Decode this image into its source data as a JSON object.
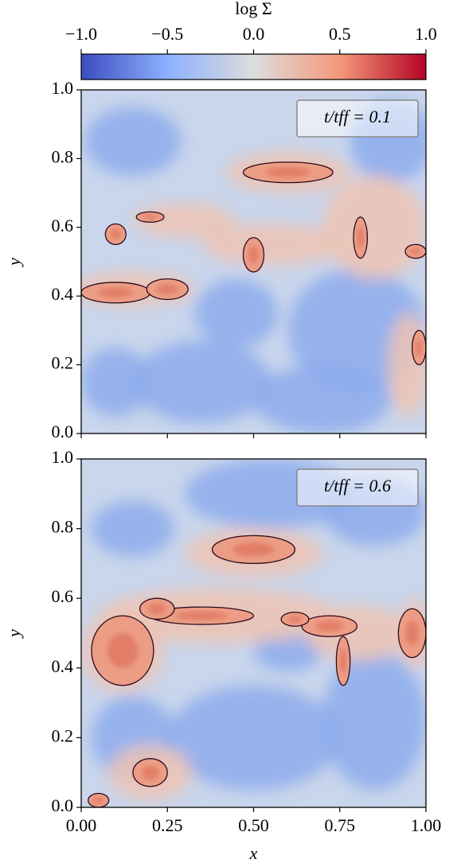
{
  "chart_data": [
    {
      "type": "heatmap",
      "annotation": "t/tff = 0.1",
      "ylabel": "y",
      "xlim": [
        0,
        1
      ],
      "ylim": [
        0,
        1
      ],
      "yticks": [
        {
          "value": 0,
          "label": "0.0"
        },
        0.2,
        0.4,
        0.6,
        0.8,
        {
          "value": 1,
          "label": "1.0"
        }
      ],
      "colorbar": {
        "label": "log Σ",
        "lim": [
          -1,
          1
        ],
        "ticks": [
          {
            "value": -1,
            "label": "−1.0"
          },
          {
            "value": -0.5,
            "label": "−0.5"
          },
          {
            "value": 0,
            "label": "0.0"
          },
          0.5,
          {
            "value": 1,
            "label": "1.0"
          }
        ],
        "colors": [
          "#3b4cc0",
          "#8db0fe",
          "#dddddd",
          "#f4987a",
          "#b40426"
        ]
      }
    },
    {
      "type": "heatmap",
      "annotation": "t/tff = 0.6",
      "ylabel": "y",
      "xlabel": "x",
      "xlim": [
        0,
        1
      ],
      "ylim": [
        0,
        1
      ],
      "yticks": [
        {
          "value": 0,
          "label": "0.0"
        },
        0.2,
        0.4,
        0.6,
        0.8,
        {
          "value": 1,
          "label": "1.0"
        }
      ],
      "xticks": [
        {
          "value": 0,
          "label": "0.00"
        },
        {
          "value": 0.25,
          "label": "0.25"
        },
        {
          "value": 0.5,
          "label": "0.50"
        },
        {
          "value": 0.75,
          "label": "0.75"
        },
        {
          "value": 1,
          "label": "1.00"
        }
      ]
    }
  ]
}
